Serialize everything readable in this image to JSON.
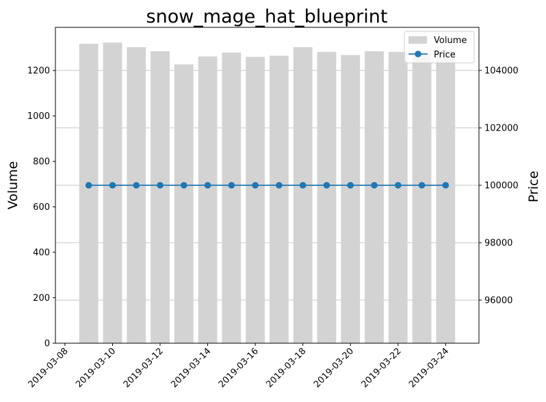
{
  "chart_data": {
    "type": "bar",
    "title": "snow_mage_hat_blueprint",
    "ylabel_left": "Volume",
    "ylabel_right": "Price",
    "xlabel": "",
    "x": [
      "2019-03-09",
      "2019-03-10",
      "2019-03-11",
      "2019-03-12",
      "2019-03-13",
      "2019-03-14",
      "2019-03-15",
      "2019-03-16",
      "2019-03-17",
      "2019-03-18",
      "2019-03-19",
      "2019-03-20",
      "2019-03-21",
      "2019-03-22",
      "2019-03-23",
      "2019-03-24"
    ],
    "xlim": [
      "2019-03-07T14:24",
      "2019-03-25T09:36"
    ],
    "x_ticks": [
      "2019-03-08",
      "2019-03-10",
      "2019-03-12",
      "2019-03-14",
      "2019-03-16",
      "2019-03-18",
      "2019-03-20",
      "2019-03-22",
      "2019-03-24"
    ],
    "series": [
      {
        "name": "Volume",
        "type": "bar",
        "axis": "left",
        "color": "#d3d3d3",
        "values": [
          1318,
          1323,
          1303,
          1285,
          1227,
          1262,
          1279,
          1260,
          1265,
          1303,
          1282,
          1268,
          1285,
          1282,
          1276,
          1280
        ]
      },
      {
        "name": "Price",
        "type": "line",
        "axis": "right",
        "color": "#1f77b4",
        "marker": "circle",
        "values": [
          100000,
          100000,
          100000,
          100000,
          100000,
          100000,
          100000,
          100000,
          100000,
          100000,
          100000,
          100000,
          100000,
          100000,
          100000,
          100000
        ]
      }
    ],
    "ylim_left": [
      0,
      1390
    ],
    "yticks_left": [
      0,
      200,
      400,
      600,
      800,
      1000,
      1200
    ],
    "ylim_right": [
      94500,
      105500
    ],
    "yticks_right": [
      96000,
      98000,
      100000,
      102000,
      104000
    ],
    "grid": "horizontal, right axis",
    "legend_position": "top-right"
  }
}
